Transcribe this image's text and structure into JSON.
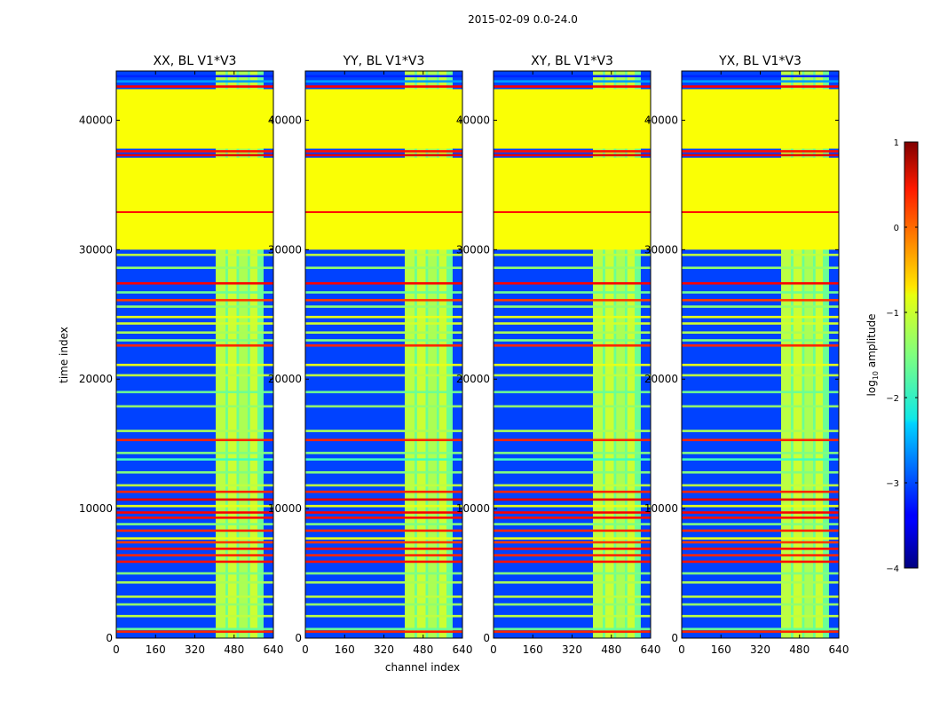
{
  "figure": {
    "suptitle": "2015-02-09 0.0-24.0"
  },
  "chart_data": {
    "type": "heatmap",
    "x_label": "channel index",
    "y_label": "time index",
    "x_ticks": [
      0,
      160,
      320,
      480,
      640
    ],
    "y_ticks": [
      0,
      10000,
      20000,
      30000,
      40000
    ],
    "x_range": [
      0,
      640
    ],
    "y_range": [
      0,
      43800
    ],
    "colormap": "jet",
    "colorbar": {
      "label_prefix": "log",
      "label_sub": "10",
      "label_suffix": " amplitude",
      "range": [
        -4,
        1
      ],
      "ticks": [
        1,
        0,
        -1,
        -2,
        -3,
        -4
      ],
      "tick_labels": [
        "1",
        "0",
        "−1",
        "−2",
        "−3",
        "−4"
      ]
    },
    "panels": [
      {
        "title": "XX, BL V1*V3"
      },
      {
        "title": "YY, BL V1*V3"
      },
      {
        "title": "XY, BL V1*V3"
      },
      {
        "title": "YX, BL V1*V3"
      }
    ],
    "flat_time_blocks": [
      {
        "t_start": 37800,
        "t_end": 42400,
        "value": -0.9
      },
      {
        "t_start": 30000,
        "t_end": 37100,
        "value": -0.9
      }
    ],
    "rfi_channel_band": {
      "ch_start": 405,
      "ch_end": 600,
      "value": -1.6
    },
    "rfi_channel_lines": [
      {
        "ch_start": 405,
        "ch_end": 445,
        "value": -1.1
      },
      {
        "ch_start": 455,
        "ch_end": 490,
        "value": -1.0
      },
      {
        "ch_start": 500,
        "ch_end": 535,
        "value": -1.2
      },
      {
        "ch_start": 545,
        "ch_end": 575,
        "value": -1.0
      }
    ],
    "horizontal_lines": [
      {
        "t": 500,
        "value": 0.2
      },
      {
        "t": 700,
        "value": -1.6
      },
      {
        "t": 1700,
        "value": -1.2
      },
      {
        "t": 2600,
        "value": -1.4
      },
      {
        "t": 3200,
        "value": -1.2
      },
      {
        "t": 4300,
        "value": -1.3
      },
      {
        "t": 5000,
        "value": -1.5
      },
      {
        "t": 5900,
        "value": 0.3
      },
      {
        "t": 6400,
        "value": 0.2
      },
      {
        "t": 6900,
        "value": 0.3
      },
      {
        "t": 7400,
        "value": 0.1
      },
      {
        "t": 7700,
        "value": -1.0
      },
      {
        "t": 8300,
        "value": 0.2
      },
      {
        "t": 8800,
        "value": -1.5
      },
      {
        "t": 9300,
        "value": 0.3
      },
      {
        "t": 9700,
        "value": 0.4
      },
      {
        "t": 10200,
        "value": -1.0
      },
      {
        "t": 10700,
        "value": 0.5
      },
      {
        "t": 11300,
        "value": 0.2
      },
      {
        "t": 11800,
        "value": -1.2
      },
      {
        "t": 12800,
        "value": -1.5
      },
      {
        "t": 13800,
        "value": -1.8
      },
      {
        "t": 14300,
        "value": -1.5
      },
      {
        "t": 15300,
        "value": 0.2
      },
      {
        "t": 16000,
        "value": -1.3
      },
      {
        "t": 17900,
        "value": -1.4
      },
      {
        "t": 19000,
        "value": -1.6
      },
      {
        "t": 20300,
        "value": -1.2
      },
      {
        "t": 21100,
        "value": -1.0
      },
      {
        "t": 22600,
        "value": 0.2
      },
      {
        "t": 23000,
        "value": -1.5
      },
      {
        "t": 23600,
        "value": -1.3
      },
      {
        "t": 24300,
        "value": -1.1
      },
      {
        "t": 24800,
        "value": -1.0
      },
      {
        "t": 25600,
        "value": -1.4
      },
      {
        "t": 26100,
        "value": 0.1
      },
      {
        "t": 26700,
        "value": -1.6
      },
      {
        "t": 27400,
        "value": 0.4
      },
      {
        "t": 28600,
        "value": -1.4
      },
      {
        "t": 29600,
        "value": -1.2
      },
      {
        "t": 32900,
        "value": 0.3
      },
      {
        "t": 33500,
        "value": -1.8
      },
      {
        "t": 37300,
        "value": 0.5
      },
      {
        "t": 37600,
        "value": 0.3
      },
      {
        "t": 42600,
        "value": 0.4
      },
      {
        "t": 43000,
        "value": -2.6
      },
      {
        "t": 43400,
        "value": -3.2
      }
    ]
  }
}
